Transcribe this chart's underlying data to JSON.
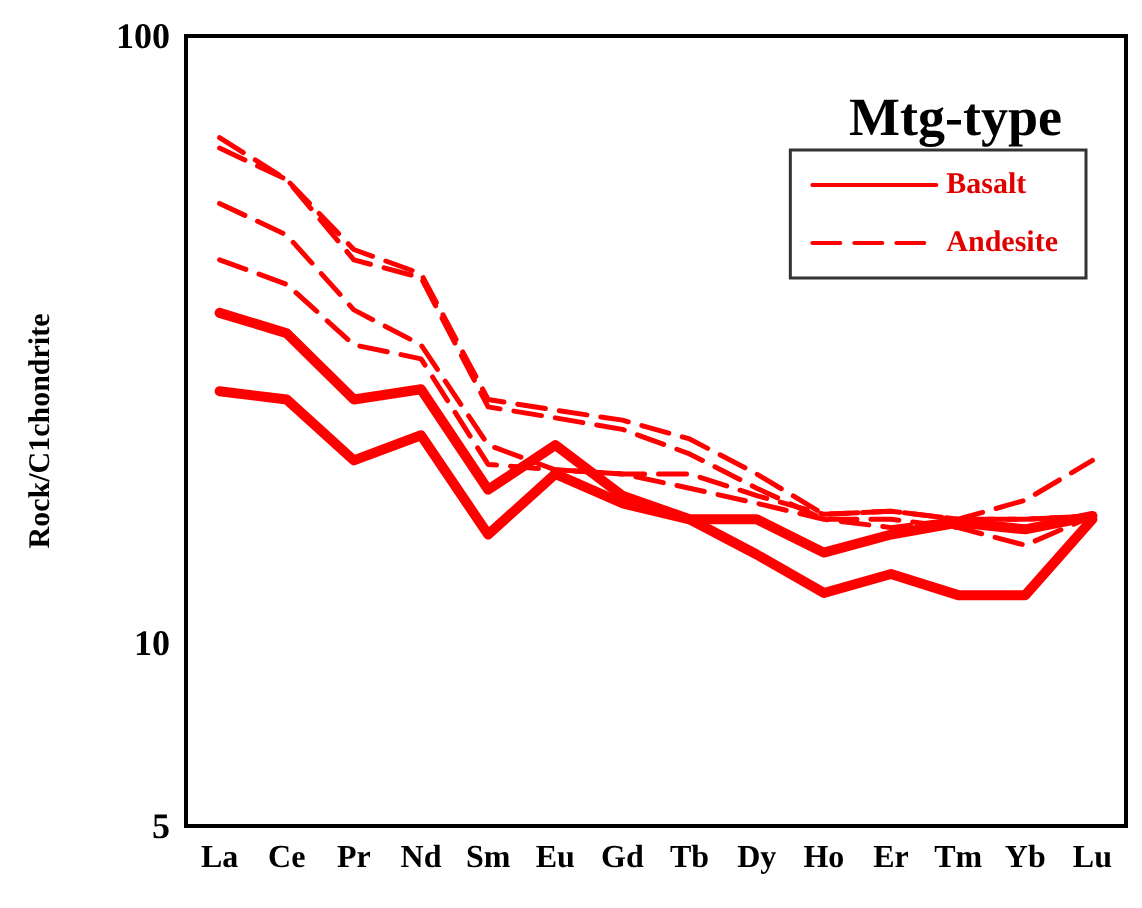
{
  "chart_data": {
    "type": "line",
    "title": "Mtg-type",
    "ylabel": "Rock/C1chondrite",
    "categories": [
      "La",
      "Ce",
      "Pr",
      "Nd",
      "Sm",
      "Eu",
      "Gd",
      "Tb",
      "Dy",
      "Ho",
      "Er",
      "Tm",
      "Yb",
      "Lu"
    ],
    "series": [
      {
        "name": "Basalt",
        "color": "#ff0000",
        "line_style": "solid",
        "values": [
          35,
          32.4,
          25.2,
          26.2,
          17.9,
          21.2,
          17.5,
          16,
          16,
          14.1,
          15.1,
          15.8,
          15.4,
          16.2
        ]
      },
      {
        "color": "#ff0000",
        "line_style": "solid",
        "values": [
          26,
          25.2,
          20,
          22,
          15.1,
          19,
          17,
          16,
          14,
          12.1,
          13,
          12,
          12,
          16
        ]
      },
      {
        "name": "Andesite",
        "color": "#ff0000",
        "line_style": "dashed",
        "values": [
          68,
          58,
          44.5,
          40.6,
          25.2,
          24.2,
          23.3,
          21.7,
          19,
          16.3,
          16.5,
          16,
          17.2,
          20
        ]
      },
      {
        "color": "#ff0000",
        "line_style": "dashed",
        "values": [
          65.4,
          58,
          42.8,
          40,
          24.5,
          23.5,
          22.5,
          20.5,
          18,
          16,
          16,
          15.5,
          14.5,
          16.2
        ]
      },
      {
        "color": "#ff0000",
        "line_style": "dashed",
        "values": [
          53,
          47,
          35.4,
          31,
          21.2,
          19.3,
          19,
          19,
          17.5,
          16.3,
          16.5,
          16,
          16,
          16.2
        ]
      },
      {
        "color": "#ff0000",
        "line_style": "dashed",
        "values": [
          42.8,
          39,
          31,
          29.4,
          19.7,
          19.3,
          19,
          18,
          17,
          16,
          15.5,
          16,
          16,
          16.2
        ]
      }
    ],
    "log": "y",
    "ylim": [
      5,
      100
    ],
    "yticks": [
      5,
      10,
      100
    ],
    "grid": false,
    "legend": "top right",
    "marker": "none"
  }
}
